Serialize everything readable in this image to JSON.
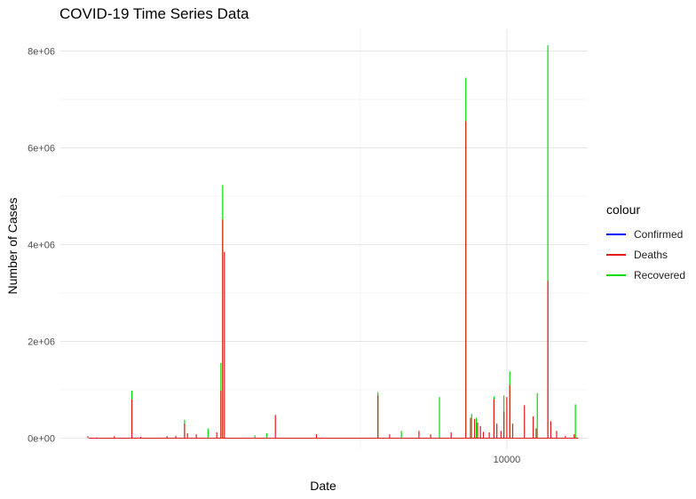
{
  "chart_data": {
    "type": "line",
    "title": "COVID-19 Time Series Data",
    "xlabel": "Date",
    "ylabel": "Number of Cases",
    "x_ticks": [
      10000
    ],
    "x_tick_labels": [
      "10000"
    ],
    "xlim": [
      2380,
      11380
    ],
    "y_ticks": [
      0,
      2000000,
      4000000,
      6000000,
      8000000
    ],
    "y_tick_labels": [
      "0e+00",
      "2e+06",
      "4e+06",
      "6e+06",
      "8e+06"
    ],
    "ylim": [
      -230000,
      8450000
    ],
    "grid": true,
    "legend": {
      "title": "colour",
      "position": "right",
      "items": [
        {
          "name": "Confirmed",
          "color": "#0000ff"
        },
        {
          "name": "Deaths",
          "color": "#e41a1c"
        },
        {
          "name": "Recovered",
          "color": "#00dd00"
        }
      ]
    },
    "series": [
      {
        "name": "Recovered",
        "color": "#00dd00",
        "points": [
          [
            3000,
            10000
          ],
          [
            3600,
            980000
          ],
          [
            4500,
            380000
          ],
          [
            4900,
            200000
          ],
          [
            5050,
            20000
          ],
          [
            5120,
            1550000
          ],
          [
            5150,
            5230000
          ],
          [
            5700,
            60000
          ],
          [
            5900,
            100000
          ],
          [
            7800,
            950000
          ],
          [
            8200,
            150000
          ],
          [
            8850,
            850000
          ],
          [
            9300,
            7450000
          ],
          [
            9400,
            500000
          ],
          [
            9480,
            420000
          ],
          [
            9780,
            860000
          ],
          [
            9950,
            880000
          ],
          [
            10050,
            1380000
          ],
          [
            10520,
            930000
          ],
          [
            10700,
            8120000
          ],
          [
            11170,
            700000
          ]
        ]
      },
      {
        "name": "Deaths",
        "color": "#e41a1c",
        "points": [
          [
            2850,
            40000
          ],
          [
            3000,
            15000
          ],
          [
            3300,
            40000
          ],
          [
            3600,
            800000
          ],
          [
            3750,
            30000
          ],
          [
            4200,
            40000
          ],
          [
            4350,
            50000
          ],
          [
            4500,
            300000
          ],
          [
            4550,
            100000
          ],
          [
            4700,
            80000
          ],
          [
            5050,
            120000
          ],
          [
            5120,
            980000
          ],
          [
            5150,
            4520000
          ],
          [
            5180,
            3850000
          ],
          [
            6050,
            480000
          ],
          [
            6750,
            80000
          ],
          [
            7800,
            880000
          ],
          [
            8000,
            80000
          ],
          [
            8500,
            150000
          ],
          [
            8700,
            80000
          ],
          [
            9050,
            120000
          ],
          [
            9300,
            6550000
          ],
          [
            9380,
            420000
          ],
          [
            9450,
            400000
          ],
          [
            9500,
            320000
          ],
          [
            9550,
            250000
          ],
          [
            9600,
            130000
          ],
          [
            9700,
            120000
          ],
          [
            9780,
            800000
          ],
          [
            9830,
            300000
          ],
          [
            9900,
            150000
          ],
          [
            9950,
            550000
          ],
          [
            10000,
            850000
          ],
          [
            10050,
            1100000
          ],
          [
            10100,
            300000
          ],
          [
            10300,
            680000
          ],
          [
            10450,
            450000
          ],
          [
            10500,
            200000
          ],
          [
            10700,
            3250000
          ],
          [
            10750,
            350000
          ],
          [
            10850,
            150000
          ],
          [
            11000,
            50000
          ],
          [
            11150,
            80000
          ]
        ]
      }
    ]
  }
}
